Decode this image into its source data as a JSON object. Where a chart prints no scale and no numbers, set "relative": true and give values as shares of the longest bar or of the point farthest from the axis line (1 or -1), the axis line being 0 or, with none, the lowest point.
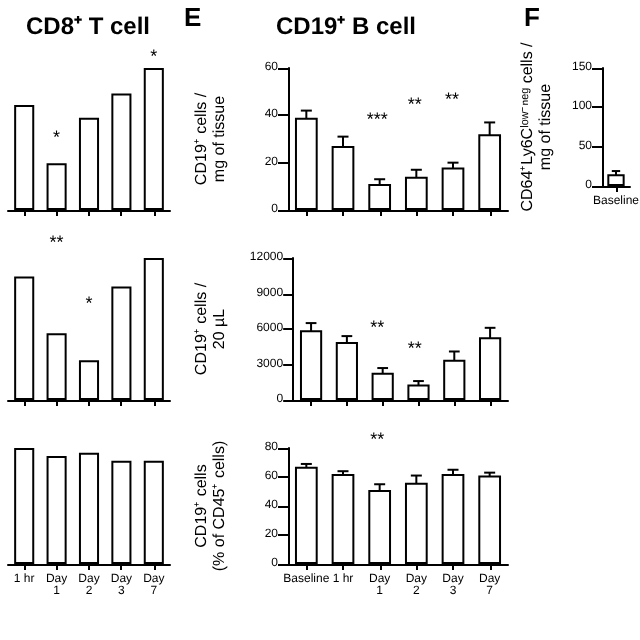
{
  "chart_data": [
    {
      "type": "bar",
      "title": "CD8⁺ T cell",
      "relative": true,
      "tick_labels": false,
      "color": "#ffffff",
      "categories": [
        null,
        null,
        null,
        null,
        null
      ],
      "values": [
        0.74,
        0.33,
        0.65,
        0.82,
        1
      ],
      "annotations": [
        "*",
        "*"
      ]
    },
    {
      "type": "bar",
      "title": "CD19⁺ B cell",
      "ylabel": "CD19⁺ cells / mg of tissue",
      "tick_labels": "y",
      "color": "#ffffff",
      "categories": [
        null,
        null,
        null,
        null,
        null,
        null
      ],
      "values": [
        39,
        27,
        11,
        14,
        18,
        32
      ],
      "errors": [
        3,
        4,
        2,
        3,
        2,
        5
      ],
      "ylim": [
        0,
        60
      ],
      "yticks": [
        0,
        20,
        40,
        60
      ],
      "annotations": [
        "E",
        "***",
        "**",
        "**"
      ]
    },
    {
      "type": "bar",
      "ylabel": "CD64⁺Ly6Cˡᵒʷ⁻ⁿᵉᵍ cells / mg of tissue",
      "color": "#ffffff",
      "categories": [
        "Baseline"
      ],
      "values": [
        15
      ],
      "errors": [
        4
      ],
      "ylim": [
        0,
        150
      ],
      "yticks": [
        0,
        50,
        100,
        150
      ],
      "annotations": [
        "F"
      ]
    },
    {
      "type": "bar",
      "relative": true,
      "tick_labels": false,
      "color": "#ffffff",
      "categories": [
        null,
        null,
        null,
        null,
        null
      ],
      "values": [
        0.87,
        0.47,
        0.28,
        0.8,
        1
      ],
      "annotations": [
        "**",
        "*"
      ]
    },
    {
      "type": "bar",
      "ylabel": "CD19⁺ cells / 20 µL",
      "tick_labels": "y",
      "color": "#ffffff",
      "categories": [
        null,
        null,
        null,
        null,
        null,
        null
      ],
      "values": [
        5900,
        4900,
        2300,
        1300,
        3400,
        5300
      ],
      "errors": [
        600,
        500,
        400,
        300,
        700,
        800
      ],
      "ylim": [
        0,
        12000
      ],
      "yticks": [
        0,
        {
          "value": 3000,
          "label": "3000"
        },
        {
          "value": 6000,
          "label": "6000"
        },
        {
          "value": 9000,
          "label": "9000"
        },
        {
          "value": 12000,
          "label": "12000"
        }
      ],
      "annotations": [
        "**",
        "**"
      ]
    },
    {
      "type": "bar",
      "relative": true,
      "tick_labels": "x",
      "color": "#ffffff",
      "categories": [
        "1 hr",
        "Day 1",
        "Day 2",
        "Day 3",
        "Day 7"
      ],
      "values": [
        1,
        0.93,
        0.96,
        0.89,
        0.89
      ]
    },
    {
      "type": "bar",
      "ylabel": "CD19⁺ cells (% of CD45⁺ cells)",
      "color": "#ffffff",
      "categories": [
        "Baseline",
        "1 hr",
        "Day 1",
        "Day 2",
        "Day 3",
        "Day 7"
      ],
      "values": [
        67,
        62,
        51,
        56,
        62,
        61
      ],
      "errors": [
        2,
        2,
        4,
        5,
        3,
        2
      ],
      "ylim": [
        0,
        80
      ],
      "yticks": [
        0,
        20,
        40,
        60,
        80
      ],
      "annotations": [
        "**"
      ]
    }
  ]
}
